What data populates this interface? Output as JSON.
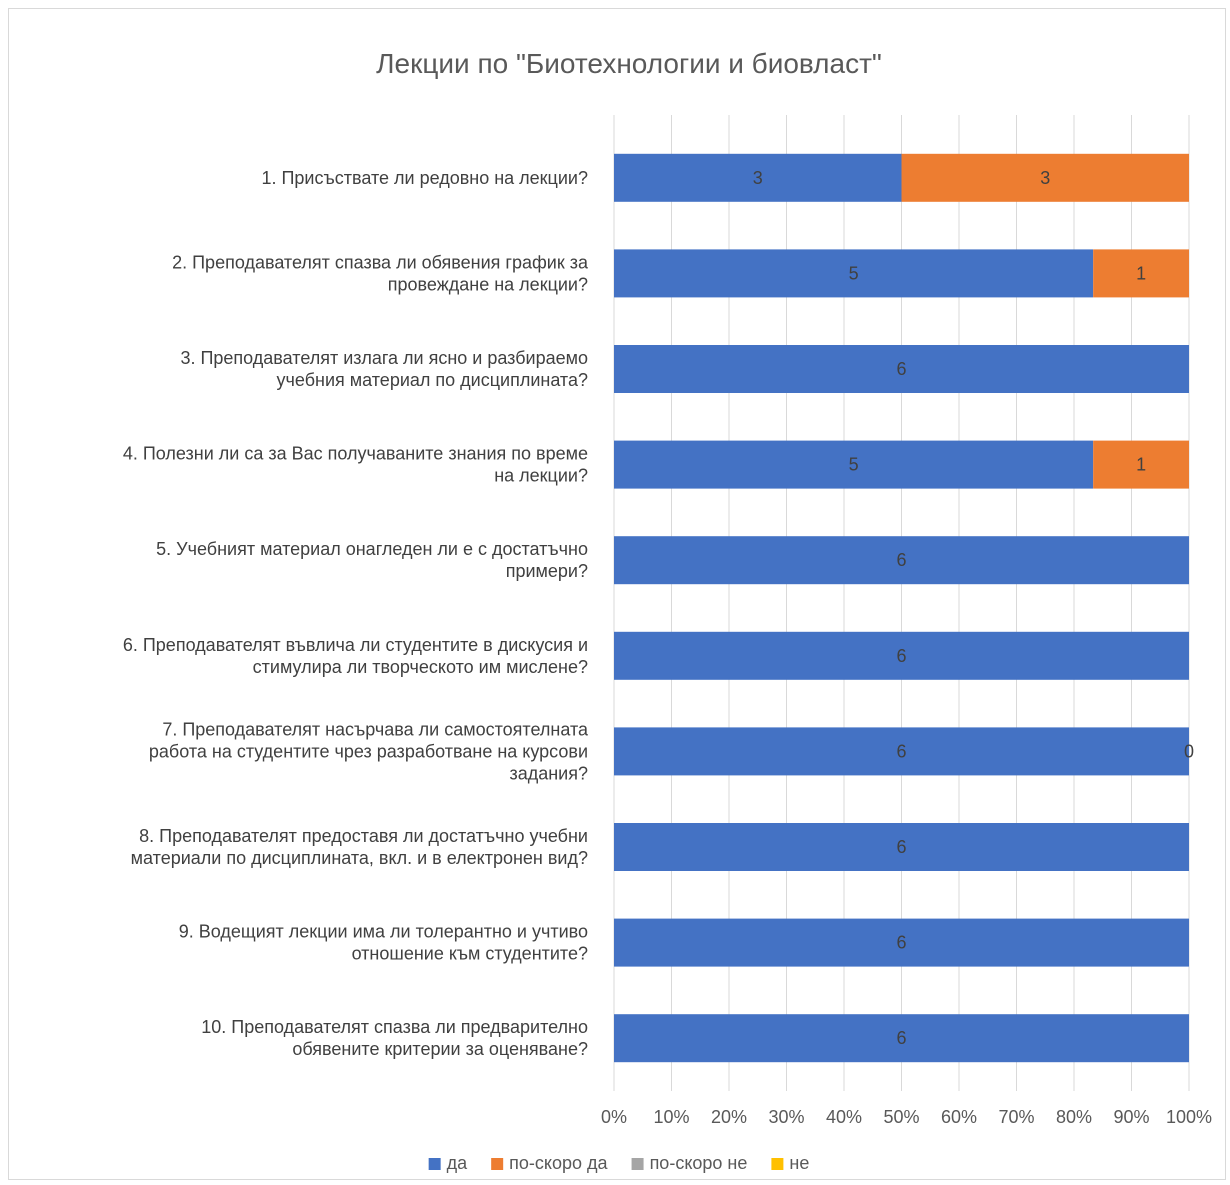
{
  "chart_data": {
    "type": "bar",
    "orientation": "horizontal",
    "stacked": "percent",
    "title": "Лекции по \"Биотехнологии и биовласт\"",
    "categories": [
      [
        "1. Присъствате ли редовно на лекции?"
      ],
      [
        "2. Преподавателят спазва ли обявения график за",
        "провеждане на лекции?"
      ],
      [
        "3. Преподавателят излага ли ясно и разбираемо",
        "учебния материал по дисциплината?"
      ],
      [
        "4. Полезни ли са за Вас получаваните знания по време",
        "на лекции?"
      ],
      [
        "5. Учебният материал онагледен ли е с достатъчно",
        "примери?"
      ],
      [
        "6. Преподавателят въвлича ли студентите в дискусия и",
        "стимулира ли творческото им мислене?"
      ],
      [
        "7. Преподавателят насърчава ли самостоятелната",
        "работа на студентите чрез разработване на курсови",
        "задания?"
      ],
      [
        "8. Преподавателят предоставя ли достатъчно учебни",
        "материали по дисциплината, вкл. и в електронен вид?"
      ],
      [
        "9. Водещият лекции има ли толерантно и учтиво",
        "отношение към студентите?"
      ],
      [
        "10. Преподавателят спазва ли предварително",
        "обявените критерии за оценяване?"
      ]
    ],
    "series": [
      {
        "name": "да",
        "color": "#4472C4",
        "values": [
          3,
          5,
          6,
          5,
          6,
          6,
          6,
          6,
          6,
          6
        ]
      },
      {
        "name": "по-скоро да",
        "color": "#ED7D31",
        "values": [
          3,
          1,
          0,
          1,
          0,
          0,
          0,
          0,
          0,
          0
        ]
      },
      {
        "name": "по-скоро не",
        "color": "#A5A5A5",
        "values": [
          0,
          0,
          0,
          0,
          0,
          0,
          0,
          0,
          0,
          0
        ]
      },
      {
        "name": "не",
        "color": "#FFC000",
        "values": [
          0,
          0,
          0,
          0,
          0,
          0,
          0,
          0,
          0,
          0
        ]
      }
    ],
    "extra_labels": [
      {
        "category_index": 6,
        "text": "0"
      }
    ],
    "x_ticks": [
      "0%",
      "10%",
      "20%",
      "30%",
      "40%",
      "50%",
      "60%",
      "70%",
      "80%",
      "90%",
      "100%"
    ],
    "xlim": [
      0,
      100
    ],
    "grid": true,
    "legend_position": "bottom"
  }
}
